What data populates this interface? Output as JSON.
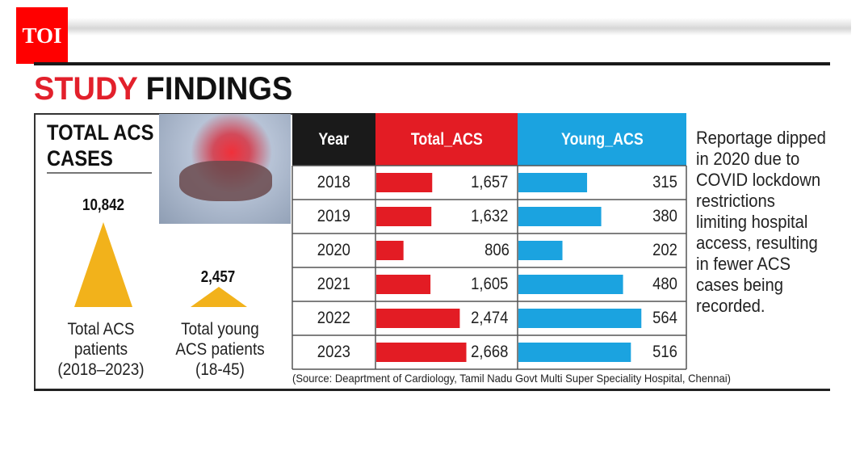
{
  "brand": {
    "logo": "TOI"
  },
  "title": {
    "part1": "STUDY",
    "part2": "FINDINGS"
  },
  "left_panel": {
    "heading_line1": "TOTAL ACS",
    "heading_line2": "CASES",
    "total": {
      "value": "10,842",
      "caption": [
        "Total ACS",
        "patients",
        "(2018–2023)"
      ]
    },
    "young": {
      "value": "2,457",
      "caption": [
        "Total young",
        "ACS patients",
        "(18-45)"
      ]
    }
  },
  "note": "Reportage dipped in 2020 due to COVID lockdown restrictions limiting hospital access, resulting in fewer ACS cases being recorded.",
  "source": "(Source: Deaprtment of Cardiology, Tamil Nadu Govt Multi Super Speciality Hospital, Chennai)",
  "colors": {
    "total": "#e31c24",
    "young": "#1ba3e0",
    "header_year": "#1a1a1a",
    "triangle": "#f2b21b"
  },
  "chart_data": {
    "type": "table",
    "columns": [
      "Year",
      "Total_ACS",
      "Young_ACS"
    ],
    "categories": [
      "2018",
      "2019",
      "2020",
      "2021",
      "2022",
      "2023"
    ],
    "series": [
      {
        "name": "Total_ACS",
        "values": [
          1657,
          1632,
          806,
          1605,
          2474,
          2668
        ],
        "labels": [
          "1,657",
          "1,632",
          "806",
          "1,605",
          "2,474",
          "2,668"
        ]
      },
      {
        "name": "Young_ACS",
        "values": [
          315,
          380,
          202,
          480,
          564,
          516
        ],
        "labels": [
          "315",
          "380",
          "202",
          "480",
          "564",
          "516"
        ]
      }
    ]
  }
}
